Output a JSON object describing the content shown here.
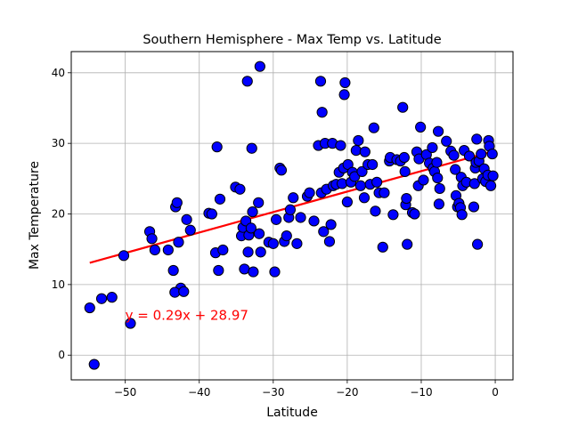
{
  "chart_data": {
    "type": "scatter",
    "title": "Southern Hemisphere - Max Temp vs. Latitude",
    "xlabel": "Latitude",
    "ylabel": "Max Temperature",
    "xlim": [
      -57.3,
      2.4
    ],
    "ylim": [
      -3.5,
      43.0
    ],
    "xticks": [
      -50,
      -40,
      -30,
      -20,
      -10,
      0
    ],
    "yticks": [
      0,
      10,
      20,
      30,
      40
    ],
    "grid": true,
    "point_color": "#0000ff",
    "point_edge_color": "#000000",
    "line_color": "#ff0000",
    "annotation": {
      "text": "y = 0.29x + 28.97",
      "x": -50,
      "y": 5,
      "color": "#ff0000"
    },
    "regression": {
      "slope": 0.29,
      "intercept": 28.97,
      "x_range": [
        -54.8,
        -0.2
      ]
    },
    "points": [
      [
        -54.8,
        6.7
      ],
      [
        -54.2,
        -1.3
      ],
      [
        -53.2,
        8.0
      ],
      [
        -51.8,
        8.2
      ],
      [
        -50.2,
        14.1
      ],
      [
        -49.3,
        4.5
      ],
      [
        -46.7,
        17.5
      ],
      [
        -46.4,
        16.5
      ],
      [
        -46.0,
        14.9
      ],
      [
        -44.2,
        14.9
      ],
      [
        -43.5,
        12.0
      ],
      [
        -43.2,
        21.0
      ],
      [
        -43.0,
        21.6
      ],
      [
        -42.8,
        16.0
      ],
      [
        -42.5,
        9.5
      ],
      [
        -43.3,
        8.9
      ],
      [
        -42.1,
        9.0
      ],
      [
        -41.7,
        19.2
      ],
      [
        -41.2,
        17.7
      ],
      [
        -38.7,
        20.1
      ],
      [
        -38.3,
        20.0
      ],
      [
        -37.8,
        14.5
      ],
      [
        -37.6,
        29.5
      ],
      [
        -37.4,
        12.0
      ],
      [
        -37.2,
        22.1
      ],
      [
        -36.8,
        14.9
      ],
      [
        -35.1,
        23.8
      ],
      [
        -34.5,
        23.5
      ],
      [
        -34.3,
        16.9
      ],
      [
        -34.1,
        18.1
      ],
      [
        -33.9,
        12.2
      ],
      [
        -33.7,
        19.0
      ],
      [
        -33.5,
        38.8
      ],
      [
        -33.4,
        14.6
      ],
      [
        -33.3,
        17.0
      ],
      [
        -33.0,
        18.0
      ],
      [
        -32.9,
        29.3
      ],
      [
        -32.8,
        20.3
      ],
      [
        -32.7,
        11.8
      ],
      [
        -32.0,
        21.6
      ],
      [
        -31.9,
        17.2
      ],
      [
        -31.8,
        40.9
      ],
      [
        -31.7,
        14.6
      ],
      [
        -30.6,
        16.0
      ],
      [
        -30.0,
        15.8
      ],
      [
        -29.8,
        11.8
      ],
      [
        -29.6,
        19.2
      ],
      [
        -29.1,
        26.5
      ],
      [
        -28.9,
        26.2
      ],
      [
        -28.5,
        16.1
      ],
      [
        -28.2,
        16.9
      ],
      [
        -27.9,
        19.5
      ],
      [
        -27.7,
        20.6
      ],
      [
        -27.3,
        22.3
      ],
      [
        -26.8,
        15.8
      ],
      [
        -26.3,
        19.5
      ],
      [
        -25.4,
        22.5
      ],
      [
        -25.1,
        23.0
      ],
      [
        -24.5,
        19.0
      ],
      [
        -23.9,
        29.7
      ],
      [
        -23.6,
        38.8
      ],
      [
        -23.5,
        23.0
      ],
      [
        -23.4,
        34.4
      ],
      [
        -23.2,
        17.5
      ],
      [
        -23.0,
        30.0
      ],
      [
        -22.8,
        23.5
      ],
      [
        -22.4,
        16.1
      ],
      [
        -22.2,
        18.5
      ],
      [
        -22.0,
        30.0
      ],
      [
        -21.9,
        24.0
      ],
      [
        -21.5,
        24.2
      ],
      [
        -21.1,
        25.9
      ],
      [
        -20.9,
        29.7
      ],
      [
        -20.7,
        24.3
      ],
      [
        -20.5,
        26.5
      ],
      [
        -20.4,
        36.9
      ],
      [
        -20.3,
        38.6
      ],
      [
        -20.0,
        21.7
      ],
      [
        -19.9,
        27.0
      ],
      [
        -19.5,
        24.5
      ],
      [
        -19.3,
        25.9
      ],
      [
        -19.0,
        25.3
      ],
      [
        -18.8,
        29.0
      ],
      [
        -18.5,
        30.4
      ],
      [
        -18.2,
        24.0
      ],
      [
        -18.0,
        26.0
      ],
      [
        -17.7,
        22.3
      ],
      [
        -17.6,
        28.8
      ],
      [
        -17.2,
        27.0
      ],
      [
        -16.9,
        24.2
      ],
      [
        -16.6,
        27.0
      ],
      [
        -16.4,
        32.2
      ],
      [
        -16.2,
        20.4
      ],
      [
        -16.0,
        24.5
      ],
      [
        -15.7,
        23.0
      ],
      [
        -15.2,
        15.3
      ],
      [
        -15.0,
        23.0
      ],
      [
        -14.3,
        27.5
      ],
      [
        -14.2,
        28.0
      ],
      [
        -13.8,
        19.9
      ],
      [
        -13.3,
        27.7
      ],
      [
        -12.8,
        27.5
      ],
      [
        -12.5,
        35.1
      ],
      [
        -12.3,
        28.0
      ],
      [
        -12.2,
        26.0
      ],
      [
        -12.1,
        21.3
      ],
      [
        -12.0,
        22.2
      ],
      [
        -11.9,
        15.7
      ],
      [
        -11.2,
        20.2
      ],
      [
        -10.9,
        20.0
      ],
      [
        -10.6,
        28.8
      ],
      [
        -10.4,
        24.0
      ],
      [
        -10.3,
        27.8
      ],
      [
        -10.1,
        32.3
      ],
      [
        -9.7,
        24.8
      ],
      [
        -9.3,
        28.4
      ],
      [
        -8.9,
        27.2
      ],
      [
        -8.5,
        29.4
      ],
      [
        -8.4,
        26.5
      ],
      [
        -8.2,
        26.0
      ],
      [
        -7.9,
        27.3
      ],
      [
        -7.8,
        25.1
      ],
      [
        -7.7,
        31.7
      ],
      [
        -7.6,
        21.4
      ],
      [
        -7.5,
        23.6
      ],
      [
        -6.6,
        30.3
      ],
      [
        -6.0,
        28.9
      ],
      [
        -5.6,
        28.3
      ],
      [
        -5.4,
        26.3
      ],
      [
        -5.3,
        22.6
      ],
      [
        -5.1,
        21.0
      ],
      [
        -4.9,
        21.5
      ],
      [
        -4.7,
        20.9
      ],
      [
        -4.6,
        25.2
      ],
      [
        -4.5,
        19.9
      ],
      [
        -4.4,
        24.0
      ],
      [
        -4.2,
        29.0
      ],
      [
        -3.9,
        24.5
      ],
      [
        -3.5,
        28.2
      ],
      [
        -2.9,
        21.0
      ],
      [
        -2.8,
        24.3
      ],
      [
        -2.7,
        26.5
      ],
      [
        -2.6,
        27.3
      ],
      [
        -2.5,
        30.6
      ],
      [
        -2.4,
        15.7
      ],
      [
        -2.2,
        27.5
      ],
      [
        -1.9,
        28.5
      ],
      [
        -1.7,
        25.0
      ],
      [
        -1.5,
        26.4
      ],
      [
        -1.3,
        24.6
      ],
      [
        -1.0,
        25.5
      ],
      [
        -0.9,
        30.4
      ],
      [
        -0.8,
        29.6
      ],
      [
        -0.6,
        24.0
      ],
      [
        -0.4,
        28.5
      ],
      [
        -0.3,
        25.4
      ]
    ]
  }
}
